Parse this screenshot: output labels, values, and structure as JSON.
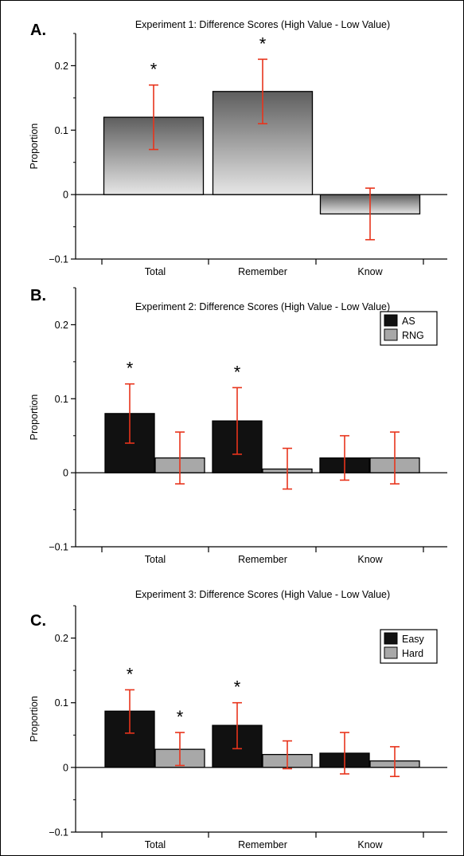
{
  "chart_data": [
    {
      "type": "bar",
      "panel_label": "A.",
      "title": "Experiment 1: Difference Scores (High Value - Low Value)",
      "ylabel": "Proportion",
      "xlabel": "",
      "ylim": [
        -0.1,
        0.25
      ],
      "yticks": [
        -0.1,
        0,
        0.1,
        0.2
      ],
      "ytick_labels": [
        "−0.1",
        "0",
        "0.1",
        "0.2"
      ],
      "categories": [
        "Total",
        "Remember",
        "Know"
      ],
      "legend": null,
      "series": [
        {
          "values": [
            0.12,
            0.16,
            -0.03
          ],
          "err_low": [
            0.07,
            0.11,
            -0.07
          ],
          "err_high": [
            0.17,
            0.21,
            0.01
          ],
          "significant": [
            true,
            true,
            false
          ],
          "fill": "gradient"
        }
      ],
      "grid": false
    },
    {
      "type": "bar",
      "panel_label": "B.",
      "title": "Experiment 2: Difference Scores (High Value - Low Value)",
      "ylabel": "Proportion",
      "xlabel": "",
      "ylim": [
        -0.1,
        0.25
      ],
      "yticks": [
        -0.1,
        0,
        0.1,
        0.2
      ],
      "ytick_labels": [
        "−0.1",
        "0",
        "0.1",
        "0.2"
      ],
      "categories": [
        "Total",
        "Remember",
        "Know"
      ],
      "legend": "top-right",
      "series": [
        {
          "name": "AS",
          "color": "#111111",
          "values": [
            0.08,
            0.07,
            0.02
          ],
          "err_low": [
            0.04,
            0.025,
            -0.01
          ],
          "err_high": [
            0.12,
            0.115,
            0.05
          ],
          "significant": [
            true,
            true,
            false
          ]
        },
        {
          "name": "RNG",
          "color": "#a8a8a8",
          "values": [
            0.02,
            0.005,
            0.02
          ],
          "err_low": [
            -0.015,
            -0.022,
            -0.015
          ],
          "err_high": [
            0.055,
            0.033,
            0.055
          ],
          "significant": [
            false,
            false,
            false
          ]
        }
      ],
      "grid": false
    },
    {
      "type": "bar",
      "panel_label": "C.",
      "title": "Experiment 3: Difference Scores (High Value - Low Value)",
      "ylabel": "Proportion",
      "xlabel": "",
      "ylim": [
        -0.1,
        0.25
      ],
      "yticks": [
        -0.1,
        0,
        0.1,
        0.2
      ],
      "ytick_labels": [
        "−0.1",
        "0",
        "0.1",
        "0.2"
      ],
      "categories": [
        "Total",
        "Remember",
        "Know"
      ],
      "legend": "top-right",
      "series": [
        {
          "name": "Easy",
          "color": "#111111",
          "values": [
            0.087,
            0.065,
            0.022
          ],
          "err_low": [
            0.053,
            0.029,
            -0.01
          ],
          "err_high": [
            0.12,
            0.1,
            0.054
          ],
          "significant": [
            true,
            true,
            false
          ]
        },
        {
          "name": "Hard",
          "color": "#a8a8a8",
          "values": [
            0.028,
            0.02,
            0.01
          ],
          "err_low": [
            0.003,
            -0.002,
            -0.014
          ],
          "err_high": [
            0.054,
            0.041,
            0.032
          ],
          "significant": [
            true,
            false,
            false
          ]
        }
      ],
      "grid": false
    }
  ],
  "style": {
    "error_bar_color": "#e8341c",
    "axis_color": "#000000",
    "gradient_top": "#5e5e5e",
    "gradient_bottom": "#e6e6e6",
    "border_color": "#000000"
  }
}
